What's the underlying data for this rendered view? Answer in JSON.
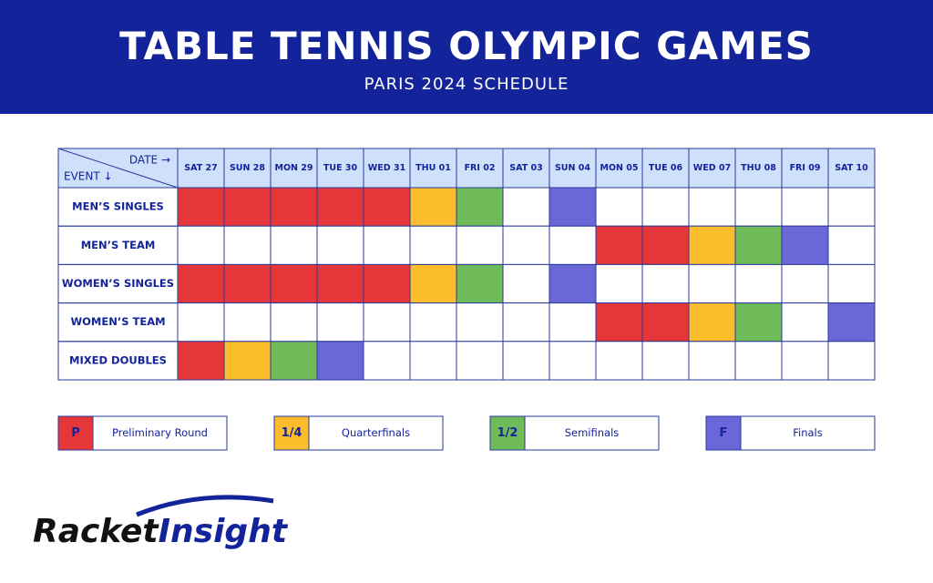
{
  "header": {
    "title": "TABLE TENNIS OLYMPIC GAMES",
    "subtitle": "PARIS 2024 SCHEDULE"
  },
  "table": {
    "corner_date": "DATE →",
    "corner_event": "EVENT ↓",
    "columns": [
      "SAT 27",
      "SUN 28",
      "MON 29",
      "TUE 30",
      "WED 31",
      "THU 01",
      "FRI 02",
      "SAT 03",
      "SUN 04",
      "MON 05",
      "TUE 06",
      "WED 07",
      "THU 08",
      "FRI 09",
      "SAT 10"
    ],
    "rows": [
      {
        "event": "MEN’S SINGLES",
        "cells": [
          "P",
          "P",
          "P",
          "P",
          "P",
          "1/4",
          "1/2",
          null,
          "F",
          null,
          null,
          null,
          null,
          null,
          null
        ]
      },
      {
        "event": "MEN’S TEAM",
        "cells": [
          null,
          null,
          null,
          null,
          null,
          null,
          null,
          null,
          null,
          "P",
          "P",
          "1/4",
          "1/2",
          "F",
          null
        ]
      },
      {
        "event": "WOMEN’S SINGLES",
        "cells": [
          "P",
          "P",
          "P",
          "P",
          "P",
          "1/4",
          "1/2",
          null,
          "F",
          null,
          null,
          null,
          null,
          null,
          null
        ]
      },
      {
        "event": "WOMEN’S TEAM",
        "cells": [
          null,
          null,
          null,
          null,
          null,
          null,
          null,
          null,
          null,
          "P",
          "P",
          "1/4",
          "1/2",
          null,
          "F"
        ]
      },
      {
        "event": "MIXED DOUBLES",
        "cells": [
          "P",
          "1/4",
          "1/2",
          "F",
          null,
          null,
          null,
          null,
          null,
          null,
          null,
          null,
          null,
          null,
          null
        ]
      }
    ]
  },
  "legend": [
    {
      "code": "P",
      "label": "Preliminary Round",
      "color": "#e5373a"
    },
    {
      "code": "1/4",
      "label": "Quarterfinals",
      "color": "#fbbd2c"
    },
    {
      "code": "1/2",
      "label": "Semifinals",
      "color": "#6fbb5a"
    },
    {
      "code": "F",
      "label": "Finals",
      "color": "#6b67d9"
    }
  ],
  "logo": {
    "part1": "Racket",
    "part2": "Insight"
  }
}
